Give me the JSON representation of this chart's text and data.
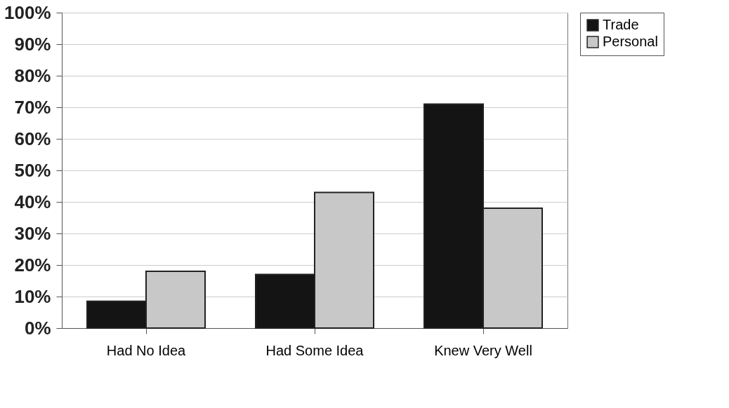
{
  "chart_data": {
    "type": "bar",
    "categories": [
      "Had No Idea",
      "Had Some Idea",
      "Knew Very Well"
    ],
    "series": [
      {
        "name": "Trade",
        "color": "#141414",
        "values": [
          8.5,
          17,
          71
        ]
      },
      {
        "name": "Personal",
        "color": "#c8c8c8",
        "values": [
          18,
          43,
          38
        ]
      }
    ],
    "ylim": [
      0,
      100
    ],
    "yticks": [
      {
        "value": 0,
        "label": "0%"
      },
      {
        "value": 10,
        "label": "10%"
      },
      {
        "value": 20,
        "label": "20%"
      },
      {
        "value": 30,
        "label": "30%"
      },
      {
        "value": 40,
        "label": "40%"
      },
      {
        "value": 50,
        "label": "50%"
      },
      {
        "value": 60,
        "label": "60%"
      },
      {
        "value": 70,
        "label": "70%"
      },
      {
        "value": 80,
        "label": "80%"
      },
      {
        "value": 90,
        "label": "90%"
      },
      {
        "value": 100,
        "label": "100%"
      }
    ],
    "grid": "y",
    "legend": "right"
  }
}
